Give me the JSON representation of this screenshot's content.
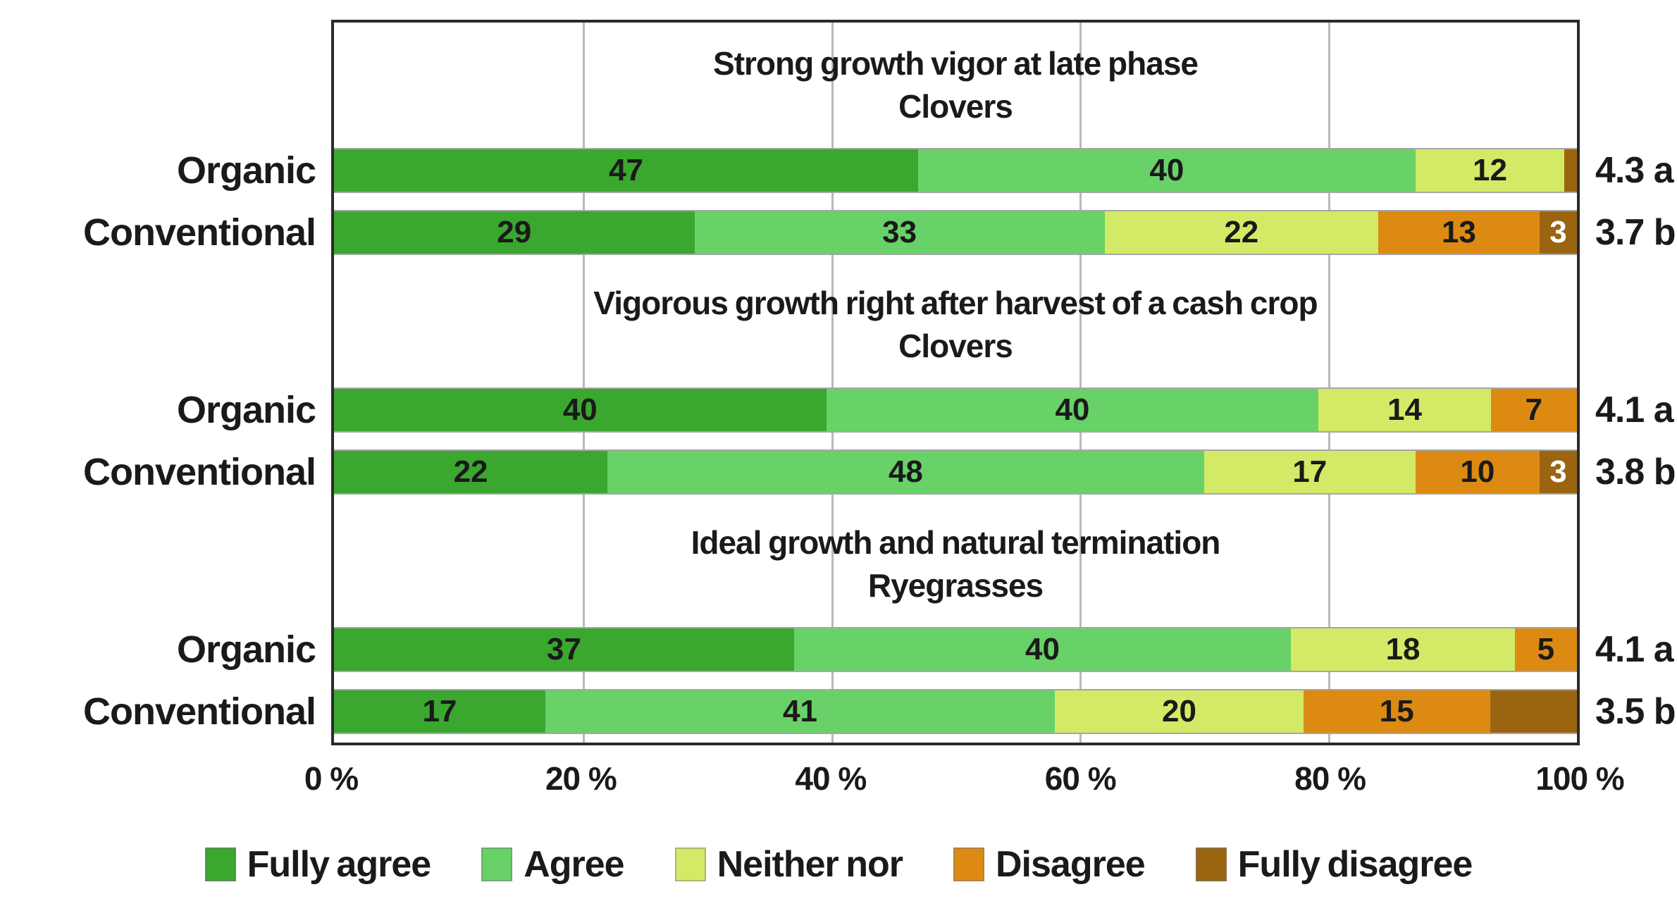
{
  "chart_data": {
    "type": "bar",
    "stacked": true,
    "orientation": "horizontal",
    "title": "",
    "xlabel": "",
    "ylabel": "",
    "x_axis": {
      "range": [
        0,
        100
      ],
      "ticks": [
        "0 %",
        "20 %",
        "40 %",
        "60 %",
        "80 %",
        "100 %"
      ],
      "gridlines_percent": [
        20,
        40,
        60,
        80
      ]
    },
    "legend": [
      "Fully agree",
      "Agree",
      "Neither nor",
      "Disagree",
      "Fully disagree"
    ],
    "legend_keys": [
      "fully_agree",
      "agree",
      "neither_nor",
      "disagree",
      "fully_disagree"
    ],
    "legend_position": "bottom",
    "colors": {
      "fully_agree": "#3aa72f",
      "agree": "#68d168",
      "neither_nor": "#d3ea67",
      "disagree": "#dd8a12",
      "fully_disagree": "#9b6410",
      "gridline": "#b9b9b9",
      "plot_border": "#2b2b2b",
      "text": "#1a1a1a"
    },
    "groups": [
      {
        "title_line1": "Strong growth vigor at late phase",
        "title_line2": "Clovers",
        "rows": [
          {
            "label": "Organic",
            "values": [
              47,
              40,
              12,
              0,
              1
            ],
            "segment_labels": [
              "47",
              "40",
              "12",
              "",
              ""
            ],
            "mean": "4.3 a"
          },
          {
            "label": "Conventional",
            "values": [
              29,
              33,
              22,
              13,
              3
            ],
            "segment_labels": [
              "29",
              "33",
              "22",
              "13",
              "3"
            ],
            "mean": "3.7 b"
          }
        ]
      },
      {
        "title_line1": "Vigorous growth right after harvest of a cash crop",
        "title_line2": "Clovers",
        "rows": [
          {
            "label": "Organic",
            "values": [
              40,
              40,
              14,
              7,
              0
            ],
            "segment_labels": [
              "40",
              "40",
              "14",
              "7",
              ""
            ],
            "mean": "4.1 a"
          },
          {
            "label": "Conventional",
            "values": [
              22,
              48,
              17,
              10,
              3
            ],
            "segment_labels": [
              "22",
              "48",
              "17",
              "10",
              "3"
            ],
            "mean": "3.8 b"
          }
        ]
      },
      {
        "title_line1": "Ideal growth and natural termination",
        "title_line2": "Ryegrasses",
        "rows": [
          {
            "label": "Organic",
            "values": [
              37,
              40,
              18,
              5,
              0
            ],
            "segment_labels": [
              "37",
              "40",
              "18",
              "5",
              ""
            ],
            "mean": "4.1 a"
          },
          {
            "label": "Conventional",
            "values": [
              17,
              41,
              20,
              15,
              7
            ],
            "segment_labels": [
              "17",
              "41",
              "20",
              "15",
              ""
            ],
            "mean": "3.5 b"
          }
        ]
      }
    ]
  }
}
